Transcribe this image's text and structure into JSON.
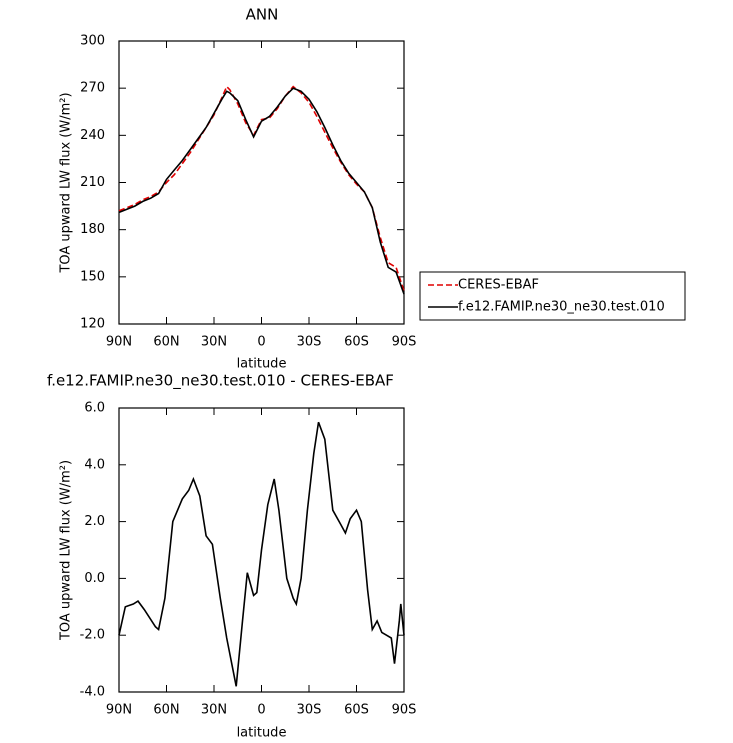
{
  "chart_data": [
    {
      "type": "line",
      "title": "ANN",
      "x_label": "latitude",
      "y_label": "TOA upward LW flux (W/m²)",
      "x": [
        90,
        85,
        80,
        75,
        70,
        65,
        60,
        55,
        50,
        45,
        40,
        35,
        30,
        25,
        22,
        20,
        15,
        10,
        5,
        0,
        -5,
        -10,
        -15,
        -20,
        -25,
        -30,
        -35,
        -40,
        -45,
        -50,
        -55,
        -60,
        -65,
        -70,
        -75,
        -80,
        -85,
        -90
      ],
      "series": [
        {
          "name": "CERES-EBAF",
          "color": "#e00000",
          "line_style": "dashed",
          "values": [
            192,
            194,
            196,
            199,
            201,
            204,
            210,
            215,
            222,
            229,
            237,
            245,
            253,
            264,
            271,
            269,
            260,
            248,
            240,
            250,
            251,
            257,
            265,
            271,
            267,
            261,
            252,
            242,
            232,
            223,
            215,
            209,
            204,
            194,
            175,
            159,
            156,
            141
          ]
        },
        {
          "name": "f.e12.FAMIP.ne30_ne30.test.010",
          "color": "#000000",
          "line_style": "solid",
          "values": [
            191,
            193,
            195,
            198,
            200,
            203,
            212,
            218,
            224,
            231,
            238,
            245,
            254,
            263,
            268,
            267,
            262,
            250,
            239,
            249,
            252,
            258,
            265,
            270,
            268,
            263,
            255,
            245,
            234,
            224,
            216,
            210,
            204,
            194,
            172,
            156,
            153,
            139
          ]
        }
      ],
      "xlim": [
        90,
        -90
      ],
      "xticks": [
        {
          "value": 90,
          "label": "90N"
        },
        {
          "value": 60,
          "label": "60N"
        },
        {
          "value": 30,
          "label": "30N"
        },
        0,
        {
          "value": -30,
          "label": "30S"
        },
        {
          "value": -60,
          "label": "60S"
        },
        {
          "value": -90,
          "label": "90S"
        }
      ],
      "ylim": [
        120,
        300
      ],
      "yticks": [
        120,
        150,
        180,
        210,
        240,
        270,
        300
      ],
      "legend_position": "right"
    },
    {
      "type": "line",
      "title": "f.e12.FAMIP.ne30_ne30.test.010 - CERES-EBAF",
      "x_label": "latitude",
      "y_label": "TOA upward LW flux (W/m²)",
      "x": [
        90,
        86,
        81,
        78,
        74,
        67,
        65,
        61,
        56,
        50,
        46,
        43,
        39,
        35,
        31,
        26,
        22,
        16,
        12,
        9,
        5,
        3,
        0,
        -4,
        -8,
        -11,
        -16,
        -20,
        -22,
        -25,
        -29,
        -33,
        -36,
        -40,
        -45,
        -50,
        -53,
        -56,
        -60,
        -63,
        -67,
        -70,
        -73,
        -76,
        -82,
        -84,
        -87,
        -88,
        -90
      ],
      "series": [
        {
          "color": "#000000",
          "line_style": "solid",
          "values": [
            -2.0,
            -1.0,
            -0.9,
            -0.8,
            -1.1,
            -1.7,
            -1.8,
            -0.7,
            2.0,
            2.8,
            3.1,
            3.5,
            2.9,
            1.5,
            1.2,
            -0.7,
            -2.1,
            -3.8,
            -1.5,
            0.2,
            -0.6,
            -0.5,
            1.0,
            2.6,
            3.5,
            2.4,
            0.0,
            -0.7,
            -0.9,
            0.0,
            2.4,
            4.4,
            5.5,
            4.9,
            2.4,
            1.9,
            1.6,
            2.1,
            2.4,
            2.0,
            -0.4,
            -1.8,
            -1.5,
            -1.9,
            -2.1,
            -3.0,
            -1.5,
            -0.9,
            -2.0
          ]
        }
      ],
      "xlim": [
        90,
        -90
      ],
      "xticks": [
        {
          "value": 90,
          "label": "90N"
        },
        {
          "value": 60,
          "label": "60N"
        },
        {
          "value": 30,
          "label": "30N"
        },
        0,
        {
          "value": -30,
          "label": "30S"
        },
        {
          "value": -60,
          "label": "60S"
        },
        {
          "value": -90,
          "label": "90S"
        }
      ],
      "ylim": [
        -4,
        6
      ],
      "yticks": [
        {
          "value": -4,
          "label": "-4.0"
        },
        {
          "value": -2,
          "label": "-2.0"
        },
        {
          "value": 0,
          "label": "0.0"
        },
        {
          "value": 2,
          "label": "2.0"
        },
        {
          "value": 4,
          "label": "4.0"
        },
        {
          "value": 6,
          "label": "6.0"
        }
      ]
    }
  ]
}
